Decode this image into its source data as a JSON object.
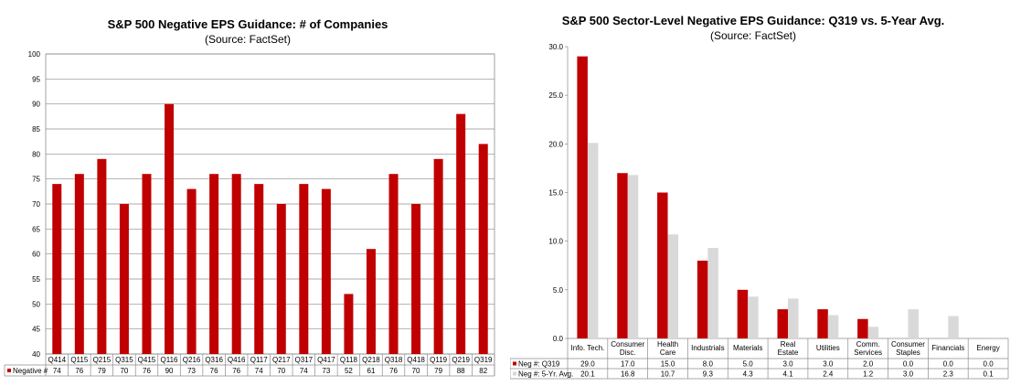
{
  "charts": [
    {
      "title": "S&P 500 Negative EPS Guidance: # of Companies",
      "subtitle": "(Source: FactSet)"
    },
    {
      "title": "S&P 500 Sector-Level Negative EPS Guidance: Q319 vs. 5-Year Avg.",
      "subtitle": "(Source: FactSet)"
    }
  ],
  "chart_data": [
    {
      "type": "bar",
      "title": "S&P 500 Negative EPS Guidance: # of Companies",
      "subtitle": "(Source: FactSet)",
      "categories": [
        "Q414",
        "Q115",
        "Q215",
        "Q315",
        "Q415",
        "Q116",
        "Q216",
        "Q316",
        "Q416",
        "Q117",
        "Q217",
        "Q317",
        "Q417",
        "Q118",
        "Q218",
        "Q318",
        "Q418",
        "Q119",
        "Q219",
        "Q319"
      ],
      "series": [
        {
          "name": "Negative #",
          "color": "#c00000",
          "values": [
            74,
            76,
            79,
            70,
            76,
            90,
            73,
            76,
            76,
            74,
            70,
            74,
            73,
            52,
            61,
            76,
            70,
            79,
            88,
            82
          ]
        }
      ],
      "ylim": [
        40,
        100
      ],
      "yticks": [
        40,
        45,
        50,
        55,
        60,
        65,
        70,
        75,
        80,
        85,
        90,
        95,
        100
      ],
      "grid": true,
      "legend": "data-table"
    },
    {
      "type": "bar",
      "title": "S&P 500 Sector-Level Negative EPS Guidance: Q319 vs. 5-Year Avg.",
      "subtitle": "(Source: FactSet)",
      "categories": [
        "Info. Tech.",
        "Consumer Disc.",
        "Health Care",
        "Industrials",
        "Materials",
        "Real Estate",
        "Utilities",
        "Comm. Services",
        "Consumer Staples",
        "Financials",
        "Energy"
      ],
      "category_lines": [
        [
          "Info. Tech."
        ],
        [
          "Consumer",
          "Disc."
        ],
        [
          "Health",
          "Care"
        ],
        [
          "Industrials"
        ],
        [
          "Materials"
        ],
        [
          "Real",
          "Estate"
        ],
        [
          "Utilities"
        ],
        [
          "Comm.",
          "Services"
        ],
        [
          "Consumer",
          "Staples"
        ],
        [
          "Financials"
        ],
        [
          "Energy"
        ]
      ],
      "series": [
        {
          "name": "Neg #: Q319",
          "color": "#c00000",
          "values": [
            29.0,
            17.0,
            15.0,
            8.0,
            5.0,
            3.0,
            3.0,
            2.0,
            0.0,
            0.0,
            0.0
          ],
          "labels": [
            "29.0",
            "17.0",
            "15.0",
            "8.0",
            "5.0",
            "3.0",
            "3.0",
            "2.0",
            "0.0",
            "0.0",
            "0.0"
          ]
        },
        {
          "name": "Neg #: 5-Yr. Avg.",
          "color": "#d9d9d9",
          "values": [
            20.1,
            16.8,
            10.7,
            9.3,
            4.3,
            4.1,
            2.4,
            1.2,
            3.0,
            2.3,
            0.1
          ],
          "labels": [
            "20.1",
            "16.8",
            "10.7",
            "9.3",
            "4.3",
            "4.1",
            "2.4",
            "1.2",
            "3.0",
            "2.3",
            "0.1"
          ]
        }
      ],
      "ylim": [
        0,
        30
      ],
      "yticks": [
        "0.0",
        "5.0",
        "10.0",
        "15.0",
        "20.0",
        "25.0",
        "30.0"
      ],
      "grid": false,
      "legend": "data-table"
    }
  ]
}
